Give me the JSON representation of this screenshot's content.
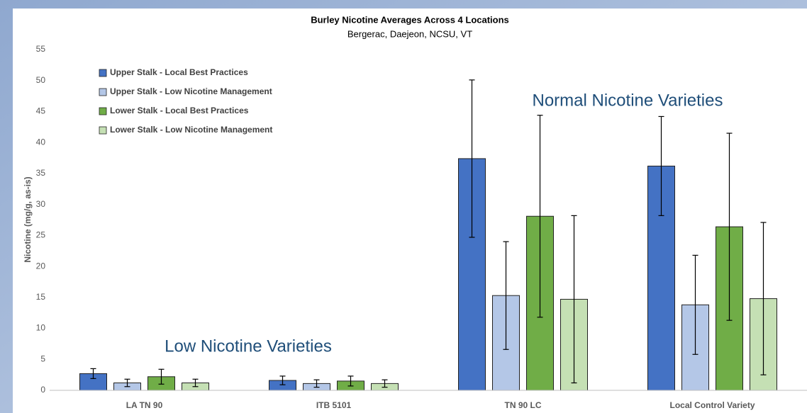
{
  "chart_data": {
    "type": "bar",
    "title": "Burley Nicotine Averages Across 4 Locations",
    "subtitle": "Bergerac, Daejeon, NCSU, VT",
    "y_label": "Nicotine (mg/g, as-is)",
    "categories": [
      "LA TN 90",
      "ITB 5101",
      "TN 90 LC",
      "Local Control Variety"
    ],
    "series": [
      {
        "name": "Upper Stalk - Local Best Practices",
        "color": "#4472c4",
        "values": [
          2.7,
          1.6,
          37.4,
          36.2
        ],
        "errors": [
          0.8,
          0.7,
          12.7,
          8.0
        ]
      },
      {
        "name": "Upper Stalk - Low Nicotine Management",
        "color": "#b4c7e7",
        "values": [
          1.2,
          1.1,
          15.3,
          13.8
        ],
        "errors": [
          0.6,
          0.6,
          8.7,
          8.0
        ]
      },
      {
        "name": "Lower Stalk - Local Best Practices",
        "color": "#70ad47",
        "values": [
          2.2,
          1.5,
          28.1,
          26.4
        ],
        "errors": [
          1.2,
          0.8,
          16.3,
          15.1
        ]
      },
      {
        "name": "Lower Stalk - Low Nicotine Management",
        "color": "#c5e0b4",
        "values": [
          1.2,
          1.1,
          14.7,
          14.8
        ],
        "errors": [
          0.6,
          0.6,
          13.5,
          12.3
        ]
      }
    ],
    "ylim": [
      0,
      55
    ],
    "yticks": [
      0,
      5,
      10,
      15,
      20,
      25,
      30,
      35,
      40,
      45,
      50,
      55
    ],
    "grid": false,
    "legend": "top-left",
    "annotations": [
      "Low Nicotine Varieties",
      "Normal Nicotine Varieties"
    ]
  }
}
